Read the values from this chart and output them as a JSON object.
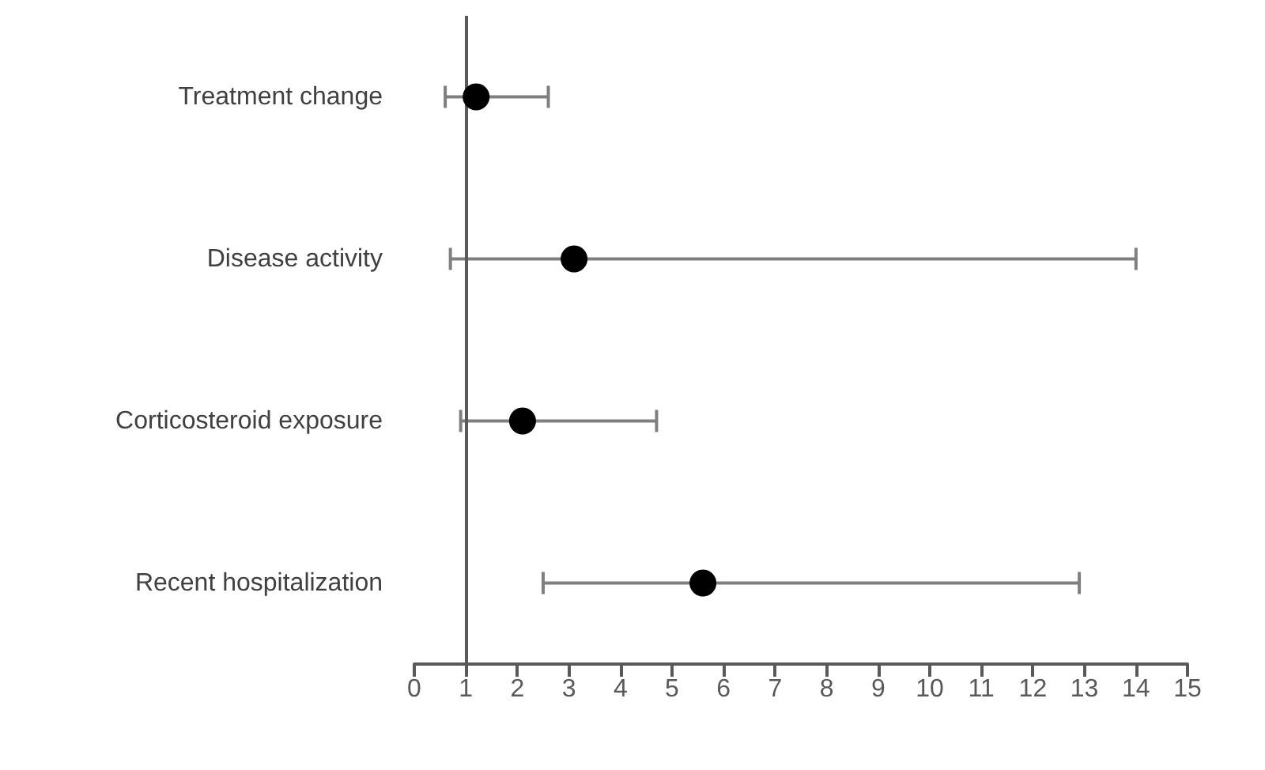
{
  "chart_data": {
    "type": "scatter",
    "orientation": "horizontal",
    "categories": [
      "Treatment change",
      "Disease activity",
      "Corticosteroid exposure",
      "Recent hospitalization"
    ],
    "series": [
      {
        "color": "#000000",
        "values": [
          1.2,
          3.1,
          2.1,
          5.6
        ],
        "errors": [
          [
            0.6,
            2.6
          ],
          [
            0.7,
            14.0
          ],
          [
            0.9,
            4.7
          ],
          [
            2.5,
            12.9
          ]
        ]
      }
    ],
    "xlim": [
      0,
      15
    ],
    "xticks": [
      0,
      1,
      2,
      3,
      4,
      5,
      6,
      7,
      8,
      9,
      10,
      11,
      12,
      13,
      14,
      15
    ],
    "ref_lines": [
      {
        "axis": "x",
        "value": 1,
        "color": "#595959"
      }
    ],
    "marker": "circle",
    "grid": false
  }
}
